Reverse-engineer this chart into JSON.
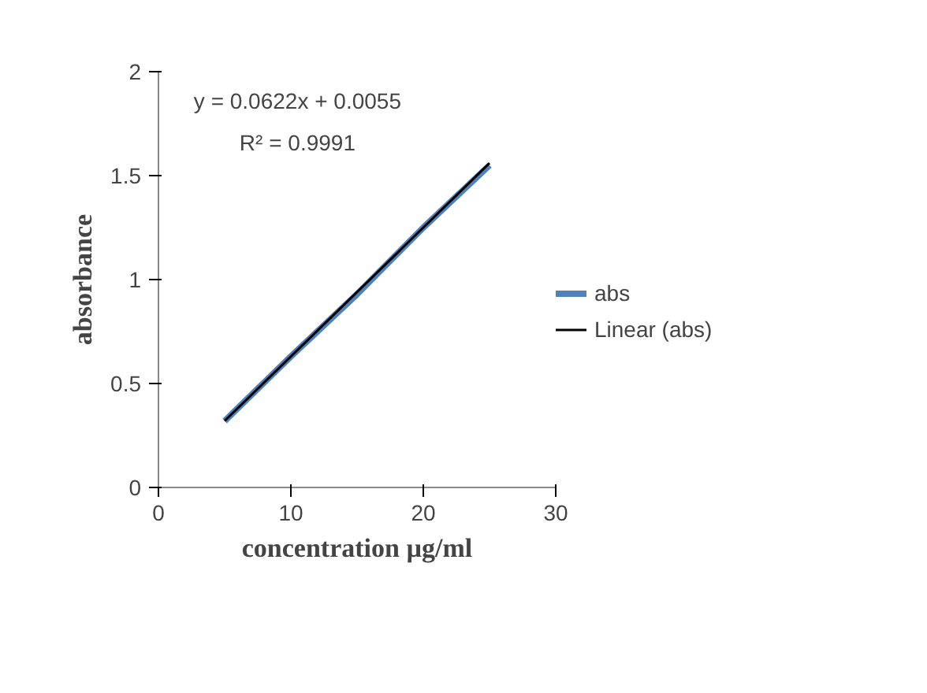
{
  "chart_data": {
    "type": "line",
    "xlabel": "concentration µg/ml",
    "ylabel": "absorbance",
    "x": [
      5,
      10,
      15,
      20,
      25
    ],
    "series": [
      {
        "name": "abs",
        "color": "#4f81bd",
        "values": [
          0.32,
          0.63,
          0.93,
          1.25,
          1.55
        ]
      },
      {
        "name": "Linear (abs)",
        "color": "#000000",
        "type": "line",
        "x": [
          5,
          25
        ],
        "values": [
          0.32,
          1.56
        ]
      }
    ],
    "xlim": [
      0,
      30
    ],
    "xticks": [
      0,
      10,
      20,
      30
    ],
    "ylim": [
      0,
      2
    ],
    "yticks": [
      0,
      0.5,
      1,
      1.5,
      2
    ],
    "annotations": [
      "y = 0.0622x + 0.0055",
      "R² = 0.9991"
    ],
    "legend": "right",
    "grid": false,
    "marker": "none"
  }
}
